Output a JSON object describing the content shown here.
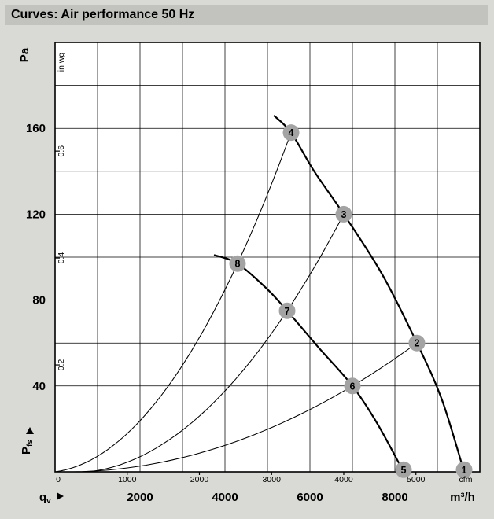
{
  "title": "Curves: Air performance 50 Hz",
  "colors": {
    "page_bg": "#d9d9d5",
    "title_bg": "#c2c2be",
    "plot_bg": "#ffffff",
    "grid": "#000000",
    "curve": "#000000",
    "marker_fill": "#a3a3a3",
    "marker_text": "#ffffff"
  },
  "chart_data": {
    "type": "line",
    "title": "Curves: Air performance 50 Hz",
    "legend": "off",
    "grid": "on",
    "x_axis": {
      "name_main": "q",
      "name_sub": "v",
      "unit_primary": "m³/h",
      "ticks_m3h": [
        2000,
        4000,
        6000,
        8000
      ],
      "unit_secondary": "cfm",
      "ticks_cfm": [
        0,
        1000,
        2000,
        3000,
        4000,
        5000
      ],
      "cfm_to_m3h": 1.699,
      "range_m3h": [
        0,
        10000
      ],
      "grid_step_m3h": 1000
    },
    "y_axis": {
      "name_main": "P",
      "name_sub": "fs",
      "unit_primary": "Pa",
      "ticks_pa": [
        40,
        80,
        120,
        160
      ],
      "unit_secondary": "in wg",
      "ticks_inwg": [
        0.2,
        0.4,
        0.6
      ],
      "inwg_to_pa": 249,
      "range_pa": [
        0,
        200
      ],
      "grid_step_pa": 20
    },
    "fan_curves": [
      {
        "name": "fan-curve-upper-speed",
        "points_q_pa": [
          [
            5150,
            166
          ],
          [
            5556,
            158
          ],
          [
            6100,
            140
          ],
          [
            6796,
            120
          ],
          [
            7700,
            92
          ],
          [
            8518,
            60
          ],
          [
            9100,
            34
          ],
          [
            9630,
            0
          ]
        ]
      },
      {
        "name": "fan-curve-lower-speed",
        "points_q_pa": [
          [
            3740,
            101
          ],
          [
            4296,
            97
          ],
          [
            5000,
            85
          ],
          [
            5463,
            75
          ],
          [
            6200,
            58
          ],
          [
            7000,
            40
          ],
          [
            7600,
            22
          ],
          [
            8204,
            0
          ]
        ]
      }
    ],
    "system_curves": [
      {
        "name": "system-curve-1",
        "through_q_pa": [
          [
            4296,
            97
          ],
          [
            5556,
            158
          ]
        ]
      },
      {
        "name": "system-curve-2",
        "through_q_pa": [
          [
            5463,
            75
          ],
          [
            6796,
            120
          ]
        ]
      },
      {
        "name": "system-curve-3",
        "through_q_pa": [
          [
            7000,
            40
          ],
          [
            8518,
            60
          ]
        ]
      }
    ],
    "markers": [
      {
        "label": "1",
        "q": 9630,
        "pa": 1
      },
      {
        "label": "2",
        "q": 8518,
        "pa": 60
      },
      {
        "label": "3",
        "q": 6796,
        "pa": 120
      },
      {
        "label": "4",
        "q": 5556,
        "pa": 158
      },
      {
        "label": "5",
        "q": 8204,
        "pa": 1
      },
      {
        "label": "6",
        "q": 7000,
        "pa": 40
      },
      {
        "label": "7",
        "q": 5463,
        "pa": 75
      },
      {
        "label": "8",
        "q": 4296,
        "pa": 97
      }
    ]
  }
}
